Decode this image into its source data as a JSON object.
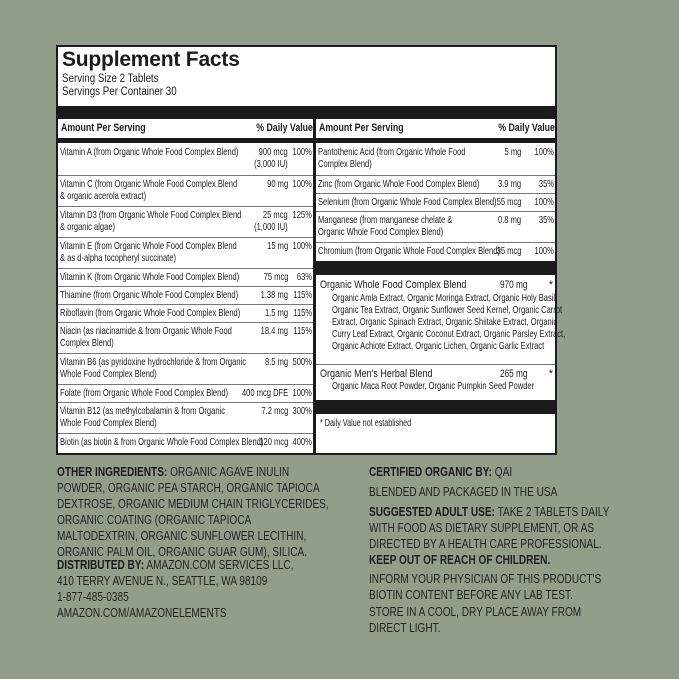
{
  "panel": {
    "title": "Supplement Facts",
    "serving_size": "Serving Size 2 Tablets",
    "servings_per_container": "Servings Per Container 30",
    "header_amount": "Amount Per Serving",
    "header_dv": "% Daily Value",
    "left_rows": [
      {
        "name": "Vitamin A (from Organic Whole Food Complex Blend)",
        "amount": "900 mcg\n(3,000 IU)",
        "dv": "100%"
      },
      {
        "name": "Vitamin C (from Organic Whole Food Complex Blend\n& organic acerola extract)",
        "amount": "90 mg",
        "dv": "100%"
      },
      {
        "name": "Vitamin D3 (from Organic Whole Food Complex Blend\n& organic algae)",
        "amount": "25 mcg\n(1,000 IU)",
        "dv": "125%"
      },
      {
        "name": "Vitamin E (from Organic Whole Food Complex Blend\n& as d-alpha tocopheryl succinate)",
        "amount": "15 mg",
        "dv": "100%"
      },
      {
        "name": "Vitamin K (from Organic Whole Food Complex Blend)",
        "amount": "75 mcg",
        "dv": "63%"
      },
      {
        "name": "Thiamine (from Organic Whole Food Complex Blend)",
        "amount": "1.38 mg",
        "dv": "115%"
      },
      {
        "name": "Riboflavin (from Organic Whole Food Complex Blend)",
        "amount": "1.5 mg",
        "dv": "115%"
      },
      {
        "name": "Niacin (as niacinamide & from Organic Whole Food\nComplex Blend)",
        "amount": "18.4 mg",
        "dv": "115%"
      },
      {
        "name": "Vitamin B6 (as pyridoxine hydrochloride & from Organic\nWhole Food Complex Blend)",
        "amount": "8.5 mg",
        "dv": "500%"
      },
      {
        "name": "Folate (from Organic Whole Food Complex Blend)",
        "amount": "400 mcg DFE",
        "dv": "100%"
      },
      {
        "name": "Vitamin B12 (as methylcobalamin & from Organic\nWhole Food Complex Blend)",
        "amount": "7.2 mcg",
        "dv": "300%"
      },
      {
        "name": "Biotin (as biotin & from Organic Whole Food Complex Blend)",
        "amount": "120 mcg",
        "dv": "400%"
      }
    ],
    "right_rows": [
      {
        "name": "Pantothenic Acid (from Organic Whole Food\nComplex Blend)",
        "amount": "5 mg",
        "dv": "100%"
      },
      {
        "name": "Zinc (from Organic Whole Food Complex Blend)",
        "amount": "3.9 mg",
        "dv": "35%"
      },
      {
        "name": "Selenium (from Organic Whole Food Complex Blend)",
        "amount": "55 mcg",
        "dv": "100%"
      },
      {
        "name": "Manganese (from manganese chelate &\nOrganic Whole Food Complex Blend)",
        "amount": "0.8 mg",
        "dv": "35%"
      },
      {
        "name": "Chromium (from Organic Whole Food Complex Blend)",
        "amount": "35 mcg",
        "dv": "100%"
      }
    ],
    "blends": [
      {
        "title": "Organic Whole Food Complex Blend",
        "amount": "970 mg",
        "symbol": "*",
        "ingredients": "Organic Amla Extract, Organic Moringa Extract, Organic Holy Basil,\nOrganic Tea Extract, Organic Sunflower Seed Kernel, Organic Carrot\nExtract, Organic Spinach Extract, Organic Shiitake Extract, Organic\nCurry Leaf Extract, Organic Coconut Extract, Organic Parsley Extract,\nOrganic Achiote Extract, Organic Lichen, Organic Garlic Extract"
      },
      {
        "title": "Organic Men's Herbal Blend",
        "amount": "265 mg",
        "symbol": "*",
        "ingredients": "Organic Maca Root Powder, Organic Pumpkin Seed Powder"
      }
    ],
    "footnote": "* Daily Value not established"
  },
  "bottom": {
    "other_label": "OTHER INGREDIENTS:",
    "other_text": " ORGANIC AGAVE INULIN\nPOWDER, ORGANIC PEA STARCH, ORGANIC TAPIOCA\nDEXTROSE, ORGANIC MEDIUM CHAIN TRIGLYCERIDES,\nORGANIC COATING (ORGANIC TAPIOCA\nMALTODEXTRIN, ORGANIC SUNFLOWER LECITHIN,\nORGANIC PALM OIL, ORGANIC GUAR GUM), SILICA.",
    "dist_label": "DISTRIBUTED BY:",
    "dist_text": " AMAZON.COM SERVICES LLC,\n410 TERRY AVENUE N., SEATTLE, WA 98109\n1-877-485-0385\nAMAZON.COM/AMAZONELEMENTS",
    "cert_label": "CERTIFIED ORGANIC BY:",
    "cert_text": " QAI",
    "blended": "BLENDED AND PACKAGED IN THE USA",
    "use_label": "SUGGESTED ADULT USE:",
    "use_text": " TAKE 2 TABLETS DAILY\nWITH FOOD AS DIETARY SUPPLEMENT, OR AS\nDIRECTED BY A HEALTH CARE PROFESSIONAL.",
    "keep_out": "KEEP OUT OF REACH OF CHILDREN.",
    "inform": "INFORM YOUR PHYSICIAN OF THIS PRODUCT'S\nBIOTIN CONTENT BEFORE ANY LAB TEST.",
    "store": "STORE IN A COOL, DRY PLACE AWAY FROM\nDIRECT LIGHT."
  },
  "colors": {
    "background": "#939e8a",
    "panel": "#ffffff",
    "ink": "#1b1b1b"
  }
}
